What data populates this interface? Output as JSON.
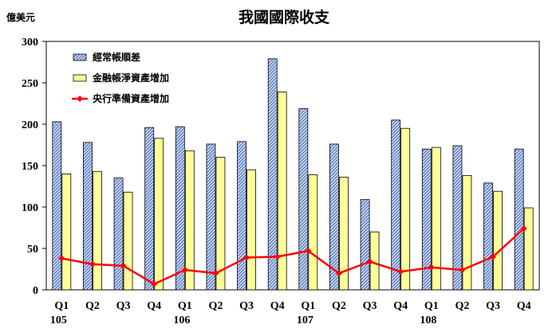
{
  "chart_data": {
    "type": "bar",
    "title": "我國國際收支",
    "ylabel": "億美元",
    "ylim": [
      0,
      300
    ],
    "yticks": [
      0,
      50,
      100,
      150,
      200,
      250,
      300
    ],
    "grid": false,
    "legend_placement": "top-left",
    "categories": [
      "Q1",
      "Q2",
      "Q3",
      "Q4",
      "Q1",
      "Q2",
      "Q3",
      "Q4",
      "Q1",
      "Q2",
      "Q3",
      "Q4",
      "Q1",
      "Q2",
      "Q3",
      "Q4"
    ],
    "year_labels": [
      "105",
      "106",
      "107",
      "108"
    ],
    "series": [
      {
        "name": "經常帳順差",
        "kind": "bar",
        "pattern": "hatch",
        "color": "#7f9fd8",
        "values": [
          203,
          178,
          135,
          196,
          197,
          176,
          179,
          279,
          219,
          176,
          109,
          205,
          170,
          174,
          129,
          170
        ]
      },
      {
        "name": "金融帳淨資產增加",
        "kind": "bar",
        "color": "#ffff99",
        "values": [
          140,
          143,
          118,
          183,
          168,
          160,
          145,
          239,
          139,
          136,
          70,
          195,
          172,
          138,
          119,
          99
        ]
      },
      {
        "name": "央行準備資產增加",
        "kind": "line",
        "color": "#ff0000",
        "values": [
          38,
          31,
          29,
          7,
          24,
          20,
          39,
          40,
          47,
          20,
          34,
          22,
          27,
          24,
          40,
          74
        ]
      }
    ]
  }
}
